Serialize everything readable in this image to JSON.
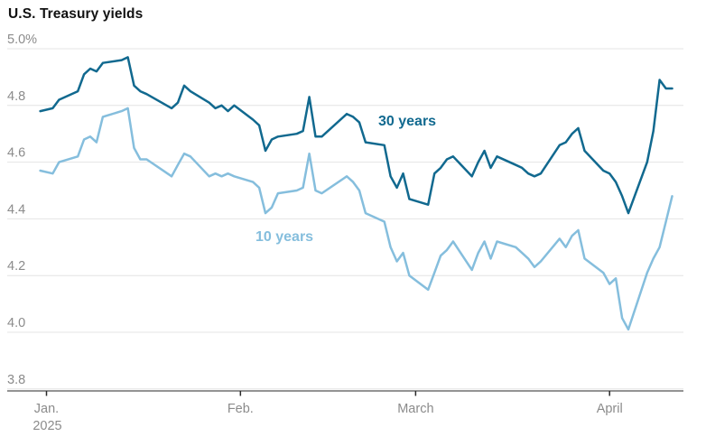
{
  "title": "U.S. Treasury yields",
  "chart_data": {
    "type": "line",
    "title": "U.S. Treasury yields",
    "unit": "percent",
    "grid": true,
    "legend_position": "inline-labels",
    "y_axis": {
      "range": [
        3.8,
        5.0
      ],
      "ticks": [
        5.0,
        4.8,
        4.6,
        4.4,
        4.2,
        4.0,
        3.8
      ],
      "tick_labels": [
        "5.0%",
        "4.8",
        "4.6",
        "4.4",
        "4.2",
        "4.0",
        "3.8"
      ]
    },
    "x_axis": {
      "tick_labels": [
        "Jan.",
        "Feb.",
        "March",
        "April"
      ],
      "tick_dates": [
        "2025-01-01",
        "2025-02-01",
        "2025-03-01",
        "2025-04-01"
      ],
      "year_label": "2025"
    },
    "dates": [
      "2024-12-31",
      "2025-01-02",
      "2025-01-03",
      "2025-01-06",
      "2025-01-07",
      "2025-01-08",
      "2025-01-09",
      "2025-01-10",
      "2025-01-13",
      "2025-01-14",
      "2025-01-15",
      "2025-01-16",
      "2025-01-17",
      "2025-01-21",
      "2025-01-22",
      "2025-01-23",
      "2025-01-24",
      "2025-01-27",
      "2025-01-28",
      "2025-01-29",
      "2025-01-30",
      "2025-01-31",
      "2025-02-03",
      "2025-02-04",
      "2025-02-05",
      "2025-02-06",
      "2025-02-07",
      "2025-02-10",
      "2025-02-11",
      "2025-02-12",
      "2025-02-13",
      "2025-02-14",
      "2025-02-18",
      "2025-02-19",
      "2025-02-20",
      "2025-02-21",
      "2025-02-24",
      "2025-02-25",
      "2025-02-26",
      "2025-02-27",
      "2025-02-28",
      "2025-03-03",
      "2025-03-04",
      "2025-03-05",
      "2025-03-06",
      "2025-03-07",
      "2025-03-10",
      "2025-03-11",
      "2025-03-12",
      "2025-03-13",
      "2025-03-14",
      "2025-03-17",
      "2025-03-18",
      "2025-03-19",
      "2025-03-20",
      "2025-03-21",
      "2025-03-24",
      "2025-03-25",
      "2025-03-26",
      "2025-03-27",
      "2025-03-28",
      "2025-03-31",
      "2025-04-01",
      "2025-04-02",
      "2025-04-03",
      "2025-04-04",
      "2025-04-07",
      "2025-04-08",
      "2025-04-09",
      "2025-04-10",
      "2025-04-11"
    ],
    "series": [
      {
        "name": "30 years",
        "color": "#11698f",
        "values": [
          4.78,
          4.79,
          4.82,
          4.85,
          4.91,
          4.93,
          4.92,
          4.95,
          4.96,
          4.97,
          4.87,
          4.85,
          4.84,
          4.79,
          4.81,
          4.87,
          4.85,
          4.81,
          4.79,
          4.8,
          4.78,
          4.8,
          4.75,
          4.73,
          4.64,
          4.68,
          4.69,
          4.7,
          4.71,
          4.83,
          4.69,
          4.69,
          4.77,
          4.76,
          4.74,
          4.67,
          4.66,
          4.55,
          4.51,
          4.56,
          4.47,
          4.45,
          4.56,
          4.58,
          4.61,
          4.62,
          4.55,
          4.6,
          4.64,
          4.58,
          4.62,
          4.59,
          4.58,
          4.56,
          4.55,
          4.56,
          4.66,
          4.67,
          4.7,
          4.72,
          4.64,
          4.57,
          4.56,
          4.53,
          4.48,
          4.42,
          4.6,
          4.71,
          4.89,
          4.86,
          4.86
        ]
      },
      {
        "name": "10 years",
        "color": "#85bedd",
        "values": [
          4.57,
          4.56,
          4.6,
          4.62,
          4.68,
          4.69,
          4.67,
          4.76,
          4.78,
          4.79,
          4.65,
          4.61,
          4.61,
          4.55,
          4.59,
          4.63,
          4.62,
          4.55,
          4.56,
          4.55,
          4.56,
          4.55,
          4.53,
          4.51,
          4.42,
          4.44,
          4.49,
          4.5,
          4.51,
          4.63,
          4.5,
          4.49,
          4.55,
          4.53,
          4.5,
          4.42,
          4.39,
          4.3,
          4.25,
          4.28,
          4.2,
          4.15,
          4.21,
          4.27,
          4.29,
          4.32,
          4.22,
          4.28,
          4.32,
          4.26,
          4.32,
          4.3,
          4.28,
          4.26,
          4.23,
          4.25,
          4.33,
          4.3,
          4.34,
          4.36,
          4.26,
          4.21,
          4.17,
          4.19,
          4.05,
          4.01,
          4.21,
          4.26,
          4.3,
          4.39,
          4.48
        ]
      }
    ]
  }
}
